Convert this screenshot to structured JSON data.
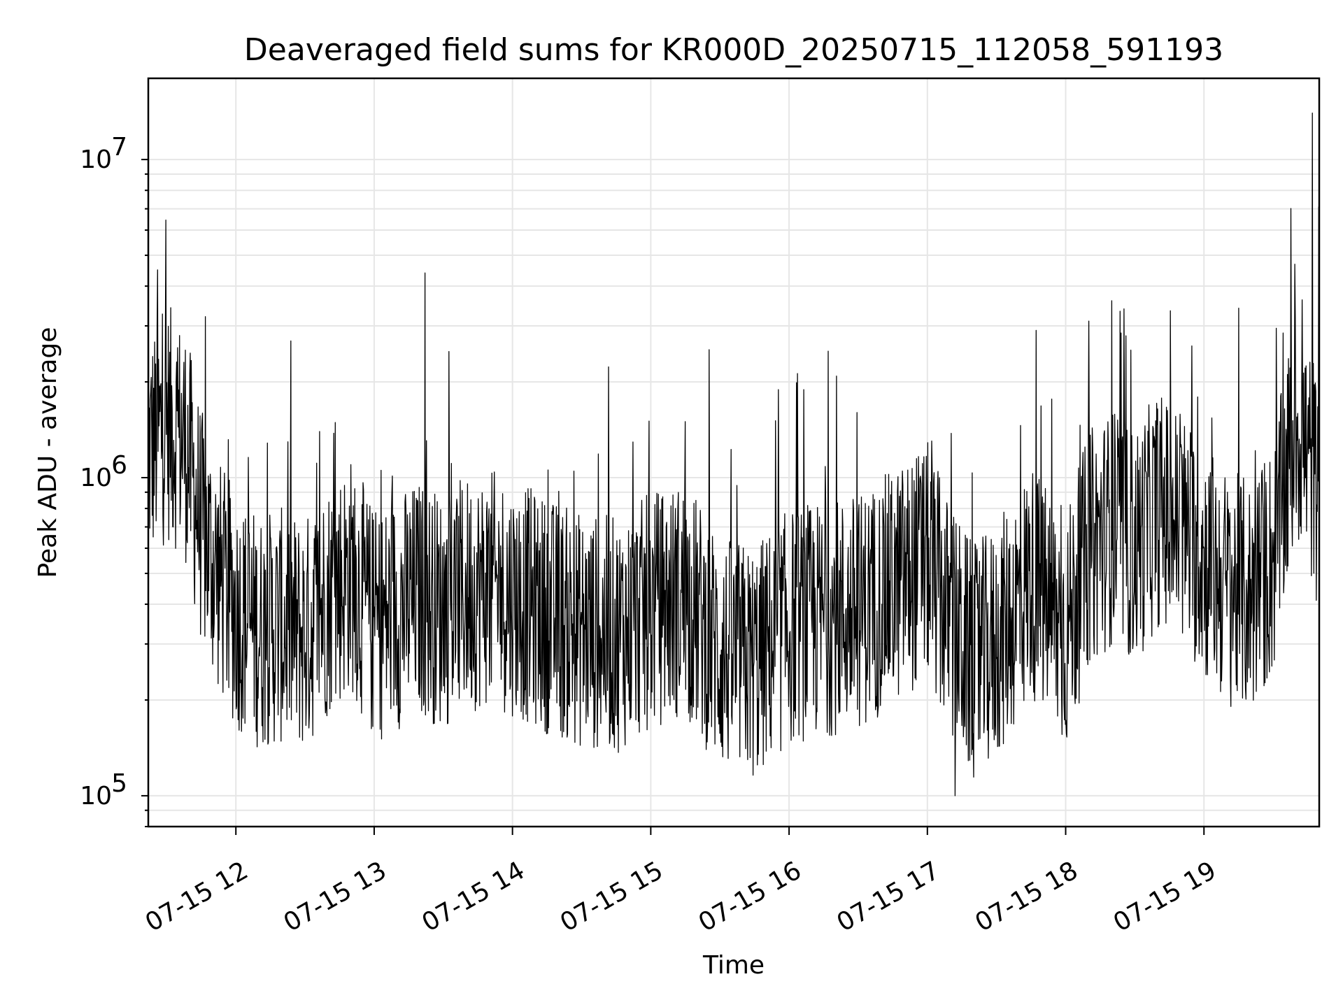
{
  "chart_data": {
    "type": "line",
    "title": "Deaveraged field sums for KR000D_20250715_112058_591193",
    "xlabel": "Time",
    "ylabel": "Peak ADU - average",
    "yscale": "log",
    "ylim": [
      80000,
      18000000
    ],
    "xlim": [
      "2025-07-15 11:22",
      "2025-07-15 19:50"
    ],
    "grid": true,
    "legend": "none",
    "line_color": "#000000",
    "y_ticks": [
      {
        "base": "10",
        "exp": "5",
        "value": 100000
      },
      {
        "base": "10",
        "exp": "6",
        "value": 1000000
      },
      {
        "base": "10",
        "exp": "7",
        "value": 10000000
      }
    ],
    "x_ticks": [
      {
        "label": "07-15 12",
        "time": "2025-07-15 12:00"
      },
      {
        "label": "07-15 13",
        "time": "2025-07-15 13:00"
      },
      {
        "label": "07-15 14",
        "time": "2025-07-15 14:00"
      },
      {
        "label": "07-15 15",
        "time": "2025-07-15 15:00"
      },
      {
        "label": "07-15 16",
        "time": "2025-07-15 16:00"
      },
      {
        "label": "07-15 17",
        "time": "2025-07-15 17:00"
      },
      {
        "label": "07-15 18",
        "time": "2025-07-15 18:00"
      },
      {
        "label": "07-15 19",
        "time": "2025-07-15 19:00"
      }
    ],
    "series": [
      {
        "x": [
          "2025-07-15 11:22",
          "2025-07-15 11:30",
          "2025-07-15 11:38",
          "2025-07-15 11:45",
          "2025-07-15 11:52",
          "2025-07-15 12:00",
          "2025-07-15 12:10",
          "2025-07-15 12:20",
          "2025-07-15 12:30",
          "2025-07-15 12:40",
          "2025-07-15 12:50",
          "2025-07-15 13:00",
          "2025-07-15 13:10",
          "2025-07-15 13:20",
          "2025-07-15 13:30",
          "2025-07-15 13:40",
          "2025-07-15 13:50",
          "2025-07-15 14:00",
          "2025-07-15 14:15",
          "2025-07-15 14:30",
          "2025-07-15 14:45",
          "2025-07-15 15:00",
          "2025-07-15 15:15",
          "2025-07-15 15:30",
          "2025-07-15 15:45",
          "2025-07-15 16:00",
          "2025-07-15 16:15",
          "2025-07-15 16:30",
          "2025-07-15 16:45",
          "2025-07-15 17:00",
          "2025-07-15 17:10",
          "2025-07-15 17:20",
          "2025-07-15 17:30",
          "2025-07-15 17:45",
          "2025-07-15 18:00",
          "2025-07-15 18:10",
          "2025-07-15 18:20",
          "2025-07-15 18:30",
          "2025-07-15 18:40",
          "2025-07-15 18:50",
          "2025-07-15 19:00",
          "2025-07-15 19:10",
          "2025-07-15 19:20",
          "2025-07-15 19:30",
          "2025-07-15 19:40",
          "2025-07-15 19:50"
        ],
        "y": [
          1200000,
          1500000,
          1300000,
          700000,
          500000,
          380000,
          330000,
          340000,
          320000,
          420000,
          500000,
          340000,
          380000,
          420000,
          380000,
          430000,
          450000,
          420000,
          370000,
          330000,
          320000,
          380000,
          420000,
          280000,
          260000,
          340000,
          360000,
          380000,
          450000,
          550000,
          350000,
          260000,
          300000,
          480000,
          320000,
          600000,
          700000,
          600000,
          800000,
          700000,
          550000,
          450000,
          420000,
          550000,
          1500000,
          900000
        ],
        "spikes": [
          {
            "time": "2025-07-15 11:22",
            "value": 6500000
          },
          {
            "time": "2025-07-15 11:26",
            "value": 4500000
          },
          {
            "time": "2025-07-15 13:22",
            "value": 4400000
          },
          {
            "time": "2025-07-15 15:15",
            "value": 1500000
          },
          {
            "time": "2025-07-15 17:12",
            "value": 100000
          },
          {
            "time": "2025-07-15 18:20",
            "value": 3600000
          },
          {
            "time": "2025-07-15 19:47",
            "value": 14000000
          }
        ]
      }
    ]
  }
}
